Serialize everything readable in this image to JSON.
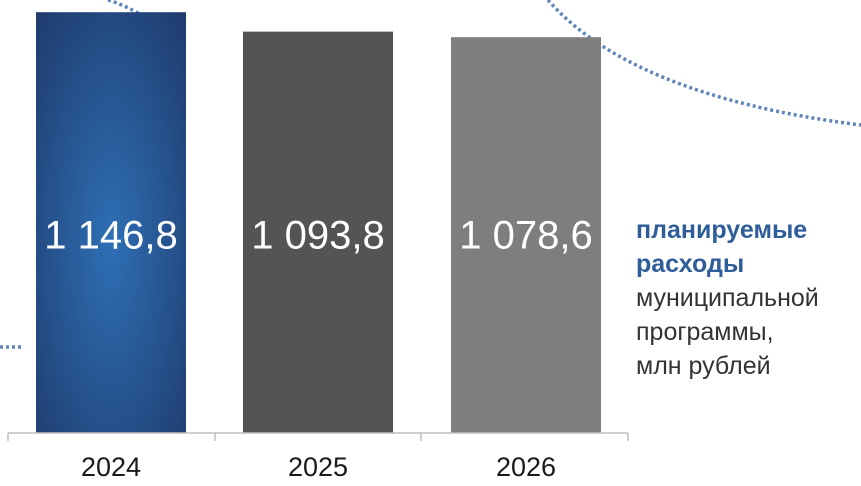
{
  "chart_data": {
    "type": "bar",
    "categories": [
      "2024",
      "2025",
      "2026"
    ],
    "values": [
      1146.8,
      1093.8,
      1078.6
    ],
    "value_labels": [
      "1 146,8",
      "1 093,8",
      "1 078,6"
    ],
    "ylim": [
      0,
      1180
    ],
    "grid": false,
    "legend": "none",
    "bar_colors": [
      "#2e6fb5",
      "#545454",
      "#7e7e7e"
    ],
    "bar_gradient_edge": "#1f3a6b",
    "title": "",
    "xlabel": "",
    "ylabel": ""
  },
  "caption": {
    "strong_lines": [
      "планируемые",
      "расходы"
    ],
    "plain_lines": [
      "муниципальной",
      "программы,",
      "млн рублей"
    ],
    "strong_color": "#2e5d9a",
    "text_color": "#333333"
  },
  "decor": {
    "dotted_color": "#5f86b8"
  }
}
